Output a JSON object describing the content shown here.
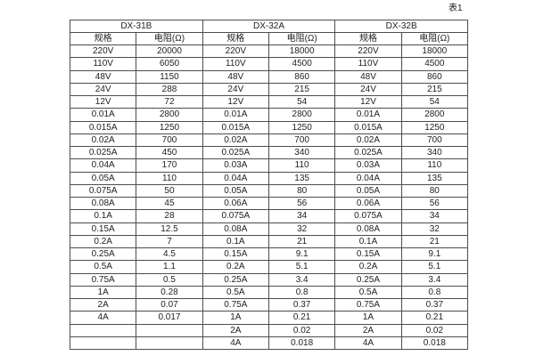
{
  "page": {
    "caption": "表1"
  },
  "table": {
    "groups": [
      {
        "name": "DX-31B",
        "col_headers": [
          "规格",
          "电阻(Ω)"
        ],
        "rows": [
          [
            "220V",
            "20000"
          ],
          [
            "110V",
            "6050"
          ],
          [
            "48V",
            "1150"
          ],
          [
            "24V",
            "288"
          ],
          [
            "12V",
            "72"
          ],
          [
            "0.01A",
            "2800"
          ],
          [
            "0.015A",
            "1250"
          ],
          [
            "0.02A",
            "700"
          ],
          [
            "0.025A",
            "450"
          ],
          [
            "0.04A",
            "170"
          ],
          [
            "0.05A",
            "110"
          ],
          [
            "0.075A",
            "50"
          ],
          [
            "0.08A",
            "45"
          ],
          [
            "0.1A",
            "28"
          ],
          [
            "0.15A",
            "12.5"
          ],
          [
            "0.2A",
            "7"
          ],
          [
            "0.25A",
            "4.5"
          ],
          [
            "0.5A",
            "1.1"
          ],
          [
            "0.75A",
            "0.5"
          ],
          [
            "1A",
            "0.28"
          ],
          [
            "2A",
            "0.07"
          ],
          [
            "4A",
            "0.017"
          ],
          [
            "",
            ""
          ],
          [
            "",
            ""
          ]
        ]
      },
      {
        "name": "DX-32A",
        "col_headers": [
          "规格",
          "电阻(Ω)"
        ],
        "rows": [
          [
            "220V",
            "18000"
          ],
          [
            "110V",
            "4500"
          ],
          [
            "48V",
            "860"
          ],
          [
            "24V",
            "215"
          ],
          [
            "12V",
            "54"
          ],
          [
            "0.01A",
            "2800"
          ],
          [
            "0.015A",
            "1250"
          ],
          [
            "0.02A",
            "700"
          ],
          [
            "0.025A",
            "340"
          ],
          [
            "0.03A",
            "110"
          ],
          [
            "0.04A",
            "135"
          ],
          [
            "0.05A",
            "80"
          ],
          [
            "0.06A",
            "56"
          ],
          [
            "0.075A",
            "34"
          ],
          [
            "0.08A",
            "32"
          ],
          [
            "0.1A",
            "21"
          ],
          [
            "0.15A",
            "9.1"
          ],
          [
            "0.2A",
            "5.1"
          ],
          [
            "0.25A",
            "3.4"
          ],
          [
            "0.5A",
            "0.8"
          ],
          [
            "0.75A",
            "0.37"
          ],
          [
            "1A",
            "0.21"
          ],
          [
            "2A",
            "0.02"
          ],
          [
            "4A",
            "0.018"
          ]
        ]
      },
      {
        "name": "DX-32B",
        "col_headers": [
          "规格",
          "电阻(Ω)"
        ],
        "rows": [
          [
            "220V",
            "18000"
          ],
          [
            "110V",
            "4500"
          ],
          [
            "48V",
            "860"
          ],
          [
            "24V",
            "215"
          ],
          [
            "12V",
            "54"
          ],
          [
            "0.01A",
            "2800"
          ],
          [
            "0.015A",
            "1250"
          ],
          [
            "0.02A",
            "700"
          ],
          [
            "0.025A",
            "340"
          ],
          [
            "0.03A",
            "110"
          ],
          [
            "0.04A",
            "135"
          ],
          [
            "0.05A",
            "80"
          ],
          [
            "0.06A",
            "56"
          ],
          [
            "0.075A",
            "34"
          ],
          [
            "0.08A",
            "32"
          ],
          [
            "0.1A",
            "21"
          ],
          [
            "0.15A",
            "9.1"
          ],
          [
            "0.2A",
            "5.1"
          ],
          [
            "0.25A",
            "3.4"
          ],
          [
            "0.5A",
            "0.8"
          ],
          [
            "0.75A",
            "0.37"
          ],
          [
            "1A",
            "0.21"
          ],
          [
            "2A",
            "0.02"
          ],
          [
            "4A",
            "0.018"
          ]
        ]
      }
    ]
  }
}
